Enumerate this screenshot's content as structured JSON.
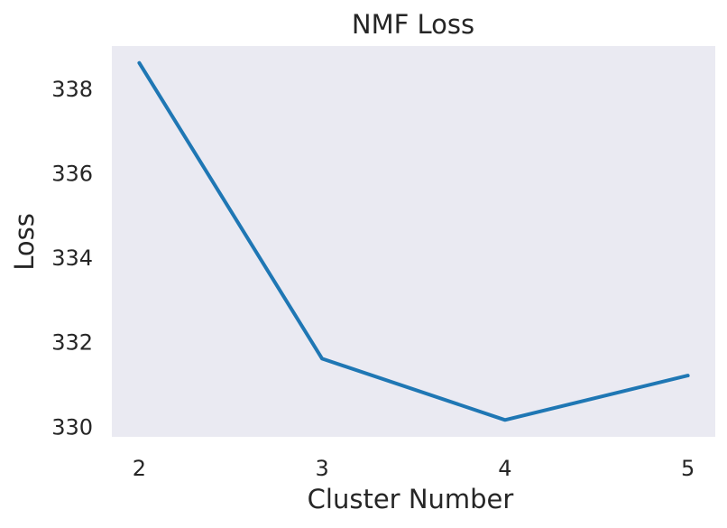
{
  "chart_data": {
    "type": "line",
    "title": "NMF Loss",
    "xlabel": "Cluster Number",
    "ylabel": "Loss",
    "x": [
      2,
      3,
      4,
      5
    ],
    "series": [
      {
        "values": [
          338.6,
          331.6,
          330.15,
          331.2
        ]
      }
    ],
    "xticks": [
      "2",
      "3",
      "4",
      "5"
    ],
    "yticks": [
      "330",
      "332",
      "334",
      "336",
      "338"
    ],
    "ylim": [
      329.75,
      339.0
    ],
    "xlim": [
      1.85,
      5.15
    ],
    "grid": false,
    "colors": {
      "line": "#1f77b4",
      "plot_background": "#eaeaf2"
    }
  }
}
